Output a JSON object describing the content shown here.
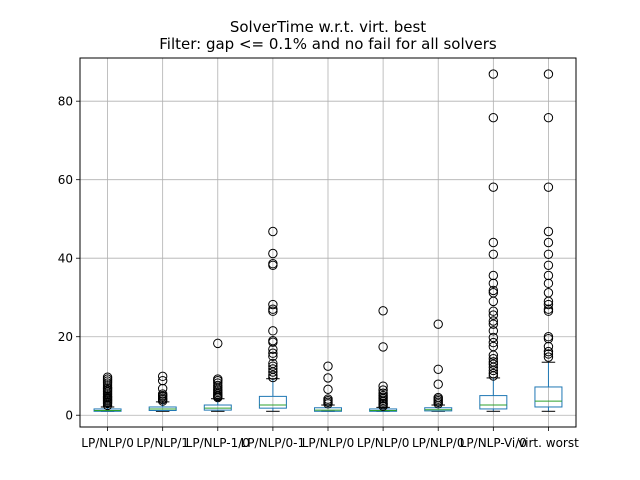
{
  "chart_data": {
    "type": "box",
    "title_line1": "SolverTime w.r.t. virt. best",
    "title_line2": "Filter: gap <= 0.1% and no fail for all solvers",
    "xlabel": "",
    "ylabel": "",
    "ylim": [
      -3,
      91
    ],
    "yticks": [
      0,
      20,
      40,
      60,
      80
    ],
    "grid": true,
    "categories": [
      "LP/NLP/0",
      "LP/NLP/1",
      "LP/NLP-1/0",
      "LP/NLP/0-1",
      "LP/NLP/0",
      "LP/NLP/0",
      "LP/NLP/0",
      "LP/NLP-Vi/0",
      "virt. worst"
    ],
    "boxes": [
      {
        "whislo": 1.0,
        "q1": 1.0,
        "med": 1.2,
        "q3": 1.6,
        "whishi": 2.1,
        "fliers": [
          2.5,
          3.0,
          3.3,
          3.6,
          3.9,
          4.2,
          4.5,
          4.8,
          5.2,
          5.6,
          6.0,
          6.4,
          6.8,
          7.2,
          7.7,
          8.2,
          8.7,
          9.2,
          9.7
        ]
      },
      {
        "whislo": 1.0,
        "q1": 1.2,
        "med": 1.6,
        "q3": 2.1,
        "whishi": 3.4,
        "fliers": [
          3.6,
          4.0,
          4.3,
          4.7,
          5.0,
          5.4,
          6.8,
          8.8,
          9.9
        ]
      },
      {
        "whislo": 1.0,
        "q1": 1.3,
        "med": 1.8,
        "q3": 2.6,
        "whishi": 4.2,
        "fliers": [
          4.5,
          4.8,
          5.0,
          5.4,
          5.8,
          6.2,
          6.6,
          7.1,
          7.6,
          8.2,
          8.8,
          9.2,
          18.3
        ]
      },
      {
        "whislo": 1.0,
        "q1": 1.8,
        "med": 2.6,
        "q3": 4.8,
        "whishi": 9.3,
        "fliers": [
          9.6,
          10.2,
          11.0,
          11.8,
          12.5,
          13.2,
          15.0,
          15.8,
          16.8,
          18.6,
          19.0,
          21.5,
          26.5,
          27.0,
          28.2,
          38.2,
          38.6,
          41.2,
          46.8
        ]
      },
      {
        "whislo": 1.0,
        "q1": 1.0,
        "med": 1.3,
        "q3": 1.9,
        "whishi": 2.6,
        "fliers": [
          2.9,
          3.3,
          3.7,
          4.1,
          6.6,
          9.5,
          12.5
        ]
      },
      {
        "whislo": 1.0,
        "q1": 1.0,
        "med": 1.2,
        "q3": 1.6,
        "whishi": 2.0,
        "fliers": [
          2.3,
          2.7,
          3.0,
          3.4,
          3.8,
          4.2,
          4.6,
          5.0,
          5.6,
          6.4,
          7.4,
          17.4,
          26.6
        ]
      },
      {
        "whislo": 1.0,
        "q1": 1.1,
        "med": 1.4,
        "q3": 1.9,
        "whishi": 2.6,
        "fliers": [
          2.9,
          3.3,
          3.7,
          4.1,
          4.5,
          7.9,
          11.7,
          23.2
        ]
      },
      {
        "whislo": 1.0,
        "q1": 1.6,
        "med": 2.6,
        "q3": 5.0,
        "whishi": 9.5,
        "fliers": [
          10.0,
          10.6,
          11.4,
          12.2,
          13.0,
          13.6,
          14.4,
          15.3,
          17.5,
          18.5,
          19.8,
          21.5,
          23.2,
          24.0,
          25.5,
          26.5,
          29.0,
          31.2,
          31.8,
          33.6,
          35.6,
          41.0,
          44.0,
          58.1,
          75.8,
          86.9
        ]
      },
      {
        "whislo": 1.0,
        "q1": 2.1,
        "med": 3.6,
        "q3": 7.2,
        "whishi": 13.5,
        "fliers": [
          14.8,
          15.6,
          16.2,
          17.5,
          19.5,
          20.0,
          26.5,
          27.0,
          28.2,
          29.0,
          31.2,
          33.6,
          35.6,
          38.2,
          41.0,
          44.0,
          46.8,
          58.1,
          75.8,
          86.9
        ]
      }
    ],
    "colors": {
      "box": "#1f77b4",
      "median": "#2ca02c",
      "grid": "#b0b0b0",
      "axis": "#000000",
      "flier": "#000000"
    }
  }
}
